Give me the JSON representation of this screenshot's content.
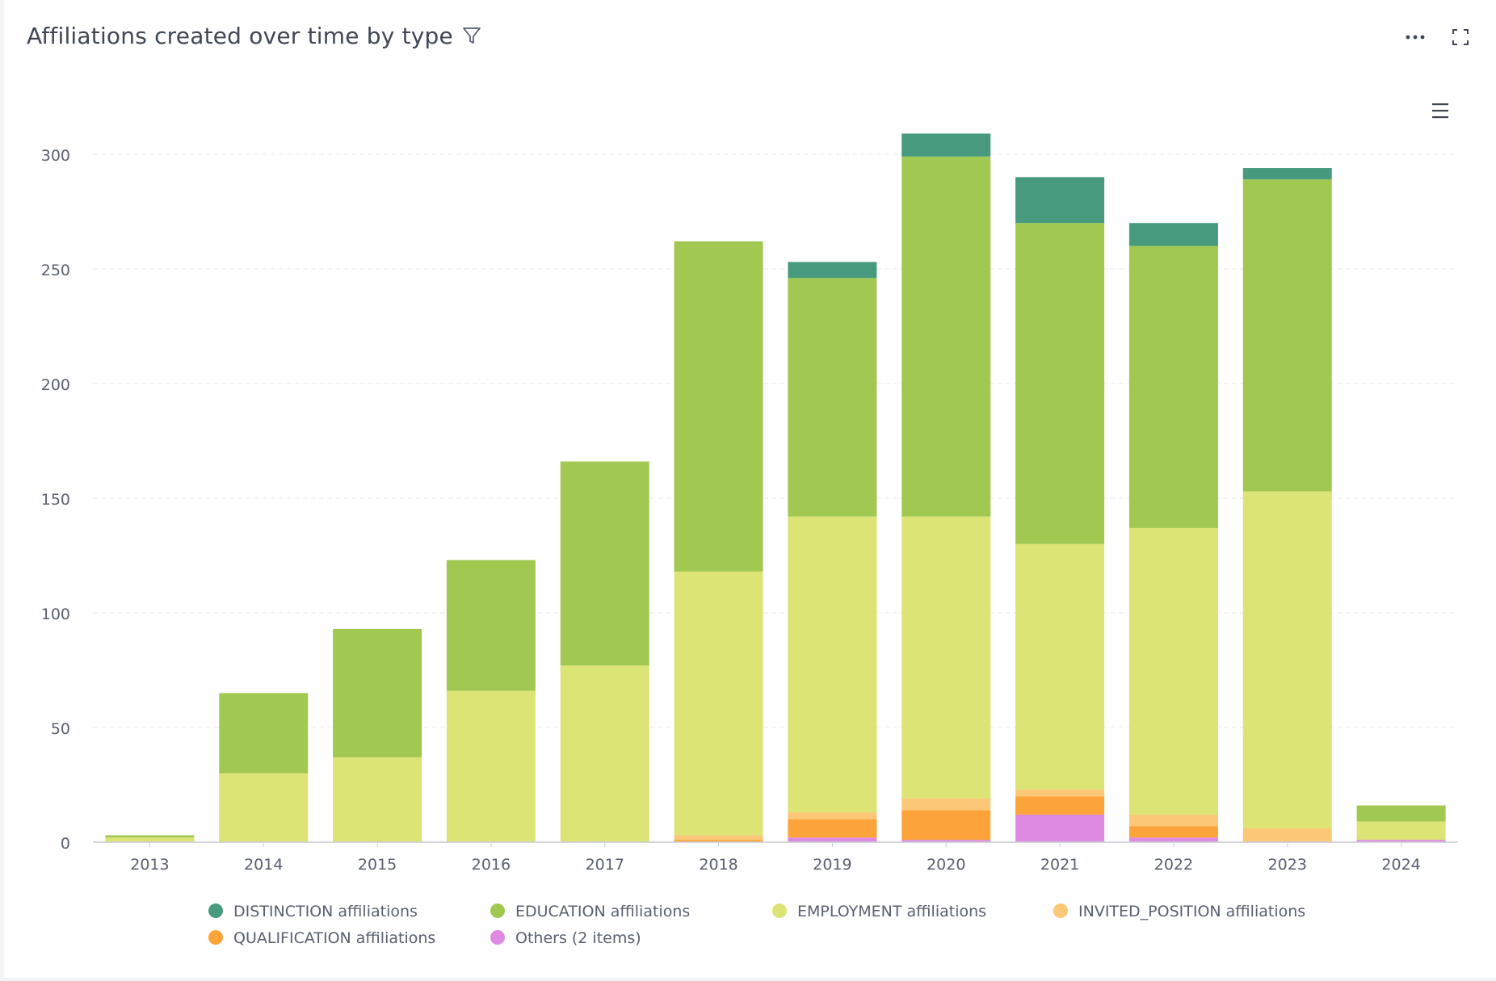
{
  "header": {
    "title": "Affiliations created over time by type",
    "filter_icon": "filter-icon",
    "more_icon": "more-horizontal-icon",
    "expand_icon": "expand-icon",
    "menu_icon": "hamburger-menu-icon"
  },
  "colors": {
    "DISTINCTION": "#479a7e",
    "EDUCATION": "#a1c851",
    "EMPLOYMENT": "#dce476",
    "INVITED_POSITION": "#fcc777",
    "QUALIFICATION": "#fca439",
    "OTHERS": "#de8ae3",
    "axis_text": "#59606e",
    "grid": "#ebebeb",
    "title": "#3f4654"
  },
  "chart_data": {
    "type": "bar",
    "stacked": true,
    "title": "Affiliations created over time by type",
    "xlabel": "",
    "ylabel": "",
    "ylim": [
      0,
      300
    ],
    "yticks": [
      0,
      50,
      100,
      150,
      200,
      250,
      300
    ],
    "grid": true,
    "legend_position": "bottom",
    "categories": [
      "2013",
      "2014",
      "2015",
      "2016",
      "2017",
      "2018",
      "2019",
      "2020",
      "2021",
      "2022",
      "2023",
      "2024"
    ],
    "series": [
      {
        "name": "Others (2 items)",
        "key": "OTHERS",
        "values": [
          0,
          0,
          0,
          0,
          0,
          0,
          2,
          1,
          12,
          2,
          0,
          1
        ]
      },
      {
        "name": "QUALIFICATION affiliations",
        "key": "QUALIFICATION",
        "values": [
          0,
          0,
          0,
          0,
          0,
          1,
          8,
          13,
          8,
          5,
          0,
          0
        ]
      },
      {
        "name": "INVITED_POSITION affiliations",
        "key": "INVITED_POSITION",
        "values": [
          0,
          0,
          0,
          0,
          0,
          2,
          3,
          5,
          3,
          5,
          6,
          0
        ]
      },
      {
        "name": "EMPLOYMENT affiliations",
        "key": "EMPLOYMENT",
        "values": [
          2,
          30,
          37,
          66,
          77,
          115,
          129,
          123,
          107,
          125,
          147,
          8
        ]
      },
      {
        "name": "EDUCATION affiliations",
        "key": "EDUCATION",
        "values": [
          1,
          35,
          56,
          57,
          89,
          144,
          104,
          157,
          140,
          123,
          136,
          7
        ]
      },
      {
        "name": "DISTINCTION affiliations",
        "key": "DISTINCTION",
        "values": [
          0,
          0,
          0,
          0,
          0,
          0,
          7,
          10,
          20,
          10,
          5,
          0
        ]
      }
    ],
    "legend": [
      {
        "name": "DISTINCTION affiliations",
        "key": "DISTINCTION"
      },
      {
        "name": "EDUCATION affiliations",
        "key": "EDUCATION"
      },
      {
        "name": "EMPLOYMENT affiliations",
        "key": "EMPLOYMENT"
      },
      {
        "name": "INVITED_POSITION affiliations",
        "key": "INVITED_POSITION"
      },
      {
        "name": "QUALIFICATION affiliations",
        "key": "QUALIFICATION"
      },
      {
        "name": "Others (2 items)",
        "key": "OTHERS"
      }
    ]
  }
}
